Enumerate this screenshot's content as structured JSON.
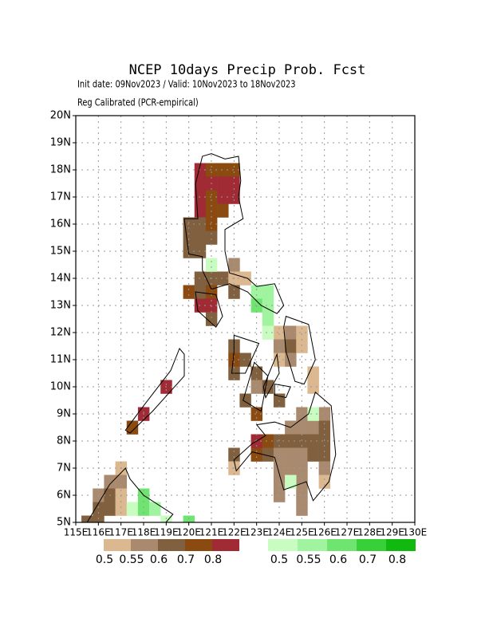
{
  "chart_data": {
    "type": "heatmap",
    "title": "NCEP 10days Precip Prob. Fcst",
    "subtitle": "Init date: 09Nov2023 / Valid: 10Nov2023 to 18Nov2023",
    "subtitle2": "Reg Calibrated (PCR-empirical)",
    "xlim": [
      115,
      130
    ],
    "ylim": [
      5,
      20
    ],
    "grid": true,
    "xticks": [
      {
        "value": 115,
        "label": "115E"
      },
      {
        "value": 116,
        "label": "116E"
      },
      {
        "value": 117,
        "label": "117E"
      },
      {
        "value": 118,
        "label": "118E"
      },
      {
        "value": 119,
        "label": "119E"
      },
      {
        "value": 120,
        "label": "120E"
      },
      {
        "value": 121,
        "label": "121E"
      },
      {
        "value": 122,
        "label": "122E"
      },
      {
        "value": 123,
        "label": "123E"
      },
      {
        "value": 124,
        "label": "124E"
      },
      {
        "value": 125,
        "label": "125E"
      },
      {
        "value": 126,
        "label": "126E"
      },
      {
        "value": 127,
        "label": "127E"
      },
      {
        "value": 128,
        "label": "128E"
      },
      {
        "value": 129,
        "label": "129E"
      },
      {
        "value": 130,
        "label": "130E"
      }
    ],
    "yticks": [
      {
        "value": 5,
        "label": "5N"
      },
      {
        "value": 6,
        "label": "6N"
      },
      {
        "value": 7,
        "label": "7N"
      },
      {
        "value": 8,
        "label": "8N"
      },
      {
        "value": 9,
        "label": "9N"
      },
      {
        "value": 10,
        "label": "10N"
      },
      {
        "value": 11,
        "label": "11N"
      },
      {
        "value": 12,
        "label": "12N"
      },
      {
        "value": 13,
        "label": "13N"
      },
      {
        "value": 14,
        "label": "14N"
      },
      {
        "value": 15,
        "label": "15N"
      },
      {
        "value": 16,
        "label": "16N"
      },
      {
        "value": 17,
        "label": "17N"
      },
      {
        "value": 18,
        "label": "18N"
      },
      {
        "value": 19,
        "label": "19N"
      },
      {
        "value": 20,
        "label": "20N"
      }
    ],
    "cell_size": 0.5,
    "series": [
      {
        "colors": [
          "#dcb890",
          "#aa8a6e",
          "#80603e",
          "#8a4a10",
          "#a02b34"
        ],
        "legend_labels": [
          0.5,
          0.55,
          0.6,
          0.7,
          0.8
        ],
        "cells": [
          [
            120.5,
            18,
            0.85
          ],
          [
            121,
            18,
            0.75
          ],
          [
            121.5,
            18,
            0.75
          ],
          [
            122,
            18,
            0.75
          ],
          [
            120.5,
            17.5,
            0.85
          ],
          [
            121,
            17.5,
            0.85
          ],
          [
            121.5,
            17.5,
            0.85
          ],
          [
            122,
            17.5,
            0.85
          ],
          [
            120.5,
            17,
            0.85
          ],
          [
            121,
            17,
            0.75
          ],
          [
            121.5,
            17,
            0.85
          ],
          [
            122,
            17,
            0.85
          ],
          [
            120.5,
            16.5,
            0.85
          ],
          [
            121,
            16.5,
            0.75
          ],
          [
            121.5,
            16.5,
            0.75
          ],
          [
            120,
            16,
            0.65
          ],
          [
            120.5,
            16,
            0.65
          ],
          [
            121,
            16,
            0.75
          ],
          [
            120,
            15.5,
            0.65
          ],
          [
            120.5,
            15.5,
            0.65
          ],
          [
            121,
            15.5,
            0.65
          ],
          [
            120,
            15,
            0.65
          ],
          [
            120.5,
            15,
            0.65
          ],
          [
            122,
            14.5,
            0.57
          ],
          [
            120.5,
            14,
            0.65
          ],
          [
            121,
            14,
            0.65
          ],
          [
            121.5,
            14,
            0.65
          ],
          [
            122,
            14,
            0.52
          ],
          [
            122.5,
            14,
            0.52
          ],
          [
            120,
            13.5,
            0.75
          ],
          [
            120.5,
            13.5,
            0.65
          ],
          [
            121,
            13.5,
            0.75
          ],
          [
            122,
            13.5,
            0.65
          ],
          [
            120.5,
            13,
            0.85
          ],
          [
            121,
            13,
            0.85
          ],
          [
            121,
            12.5,
            0.65
          ],
          [
            124,
            12,
            0.52
          ],
          [
            124.5,
            12,
            0.57
          ],
          [
            125,
            12,
            0.52
          ],
          [
            122,
            11.5,
            0.65
          ],
          [
            124,
            11.5,
            0.57
          ],
          [
            124.5,
            11.5,
            0.65
          ],
          [
            125,
            11.5,
            0.52
          ],
          [
            122,
            11,
            0.75
          ],
          [
            122.5,
            11,
            0.65
          ],
          [
            124,
            11,
            0.52
          ],
          [
            124.5,
            11,
            0.57
          ],
          [
            122,
            10.5,
            0.65
          ],
          [
            123,
            10.5,
            0.65
          ],
          [
            125.5,
            10.5,
            0.52
          ],
          [
            123,
            10,
            0.57
          ],
          [
            123.5,
            10,
            0.65
          ],
          [
            125.5,
            10,
            0.52
          ],
          [
            122.5,
            9.5,
            0.65
          ],
          [
            124,
            9.5,
            0.65
          ],
          [
            123,
            9,
            0.75
          ],
          [
            125,
            9,
            0.57
          ],
          [
            126,
            9,
            0.57
          ],
          [
            124.5,
            8.5,
            0.57
          ],
          [
            125,
            8.5,
            0.57
          ],
          [
            125.5,
            8.5,
            0.57
          ],
          [
            126,
            8.5,
            0.65
          ],
          [
            123,
            8,
            0.85
          ],
          [
            123.5,
            8,
            0.75
          ],
          [
            124,
            8,
            0.65
          ],
          [
            124.5,
            8,
            0.65
          ],
          [
            125,
            8,
            0.65
          ],
          [
            125.5,
            8,
            0.65
          ],
          [
            126,
            8,
            0.65
          ],
          [
            122,
            7.5,
            0.65
          ],
          [
            123,
            7.5,
            0.75
          ],
          [
            123.5,
            7.5,
            0.65
          ],
          [
            124,
            7.5,
            0.57
          ],
          [
            124.5,
            7.5,
            0.57
          ],
          [
            125,
            7.5,
            0.57
          ],
          [
            125.5,
            7.5,
            0.65
          ],
          [
            126,
            7.5,
            0.65
          ],
          [
            122,
            7,
            0.52
          ],
          [
            124,
            7,
            0.57
          ],
          [
            124.5,
            7,
            0.57
          ],
          [
            125,
            7,
            0.57
          ],
          [
            126,
            7,
            0.57
          ],
          [
            124,
            6.5,
            0.57
          ],
          [
            125,
            6.5,
            0.57
          ],
          [
            126,
            6.5,
            0.52
          ],
          [
            124,
            6,
            0.57
          ],
          [
            125,
            6,
            0.57
          ],
          [
            125,
            5.5,
            0.57
          ],
          [
            119,
            10,
            0.85
          ],
          [
            118,
            9,
            0.85
          ],
          [
            117.5,
            8.5,
            0.75
          ],
          [
            117,
            7,
            0.52
          ],
          [
            116.5,
            6.5,
            0.57
          ],
          [
            117,
            6.5,
            0.57
          ],
          [
            116,
            6,
            0.57
          ],
          [
            116.5,
            6,
            0.65
          ],
          [
            117,
            6,
            0.52
          ],
          [
            116,
            5.5,
            0.65
          ],
          [
            116.5,
            5.5,
            0.65
          ],
          [
            117,
            5.5,
            0.52
          ],
          [
            115.5,
            5,
            0.65
          ],
          [
            116,
            5,
            0.65
          ]
        ]
      },
      {
        "colors": [
          "#c8fcc0",
          "#a0f4a0",
          "#70e470",
          "#38d038",
          "#10b810"
        ],
        "legend_labels": [
          0.5,
          0.55,
          0.6,
          0.7,
          0.8
        ],
        "cells": [
          [
            121,
            14.5,
            0.52
          ],
          [
            123,
            13.5,
            0.57
          ],
          [
            123.5,
            13.5,
            0.57
          ],
          [
            123,
            13,
            0.65
          ],
          [
            123.5,
            13,
            0.57
          ],
          [
            123.5,
            12.5,
            0.57
          ],
          [
            123.5,
            12,
            0.52
          ],
          [
            125.5,
            9,
            0.52
          ],
          [
            124.5,
            6.5,
            0.52
          ],
          [
            118,
            6,
            0.65
          ],
          [
            117.5,
            5.5,
            0.52
          ],
          [
            118,
            5.5,
            0.65
          ],
          [
            118.5,
            5.5,
            0.57
          ],
          [
            119,
            5,
            0.52
          ],
          [
            120,
            5,
            0.65
          ]
        ]
      }
    ]
  }
}
